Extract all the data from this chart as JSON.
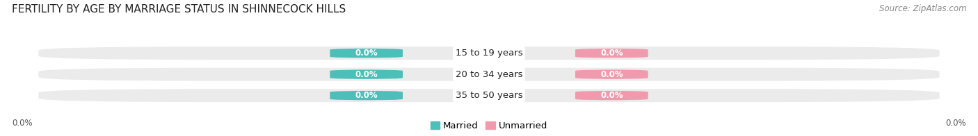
{
  "title": "FERTILITY BY AGE BY MARRIAGE STATUS IN SHINNECOCK HILLS",
  "source": "Source: ZipAtlas.com",
  "categories": [
    "15 to 19 years",
    "20 to 34 years",
    "35 to 50 years"
  ],
  "married_values": [
    0.0,
    0.0,
    0.0
  ],
  "unmarried_values": [
    0.0,
    0.0,
    0.0
  ],
  "married_color": "#4CBFB8",
  "unmarried_color": "#F09BAD",
  "bar_bg_color": "#EBEBEB",
  "title_fontsize": 11,
  "source_fontsize": 8.5,
  "cat_label_fontsize": 9.5,
  "value_fontsize": 8.5,
  "legend_fontsize": 9.5,
  "axis_label_fontsize": 8.5,
  "figsize": [
    14.06,
    1.96
  ],
  "dpi": 100
}
